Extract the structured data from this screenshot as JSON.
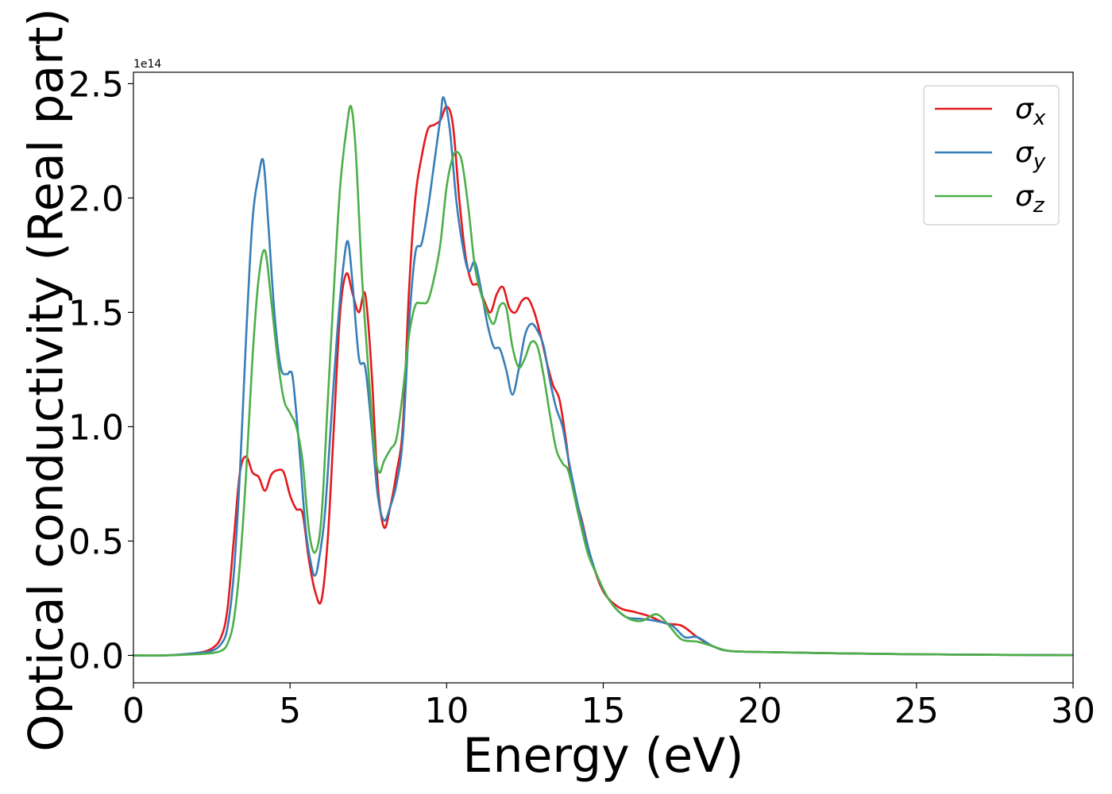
{
  "chart_data": {
    "type": "line",
    "title": "",
    "xlabel": "Energy (eV)",
    "ylabel": "Optical conductivity (Real part)",
    "y_offset_text": "1e14",
    "xlim": [
      0,
      30
    ],
    "ylim": [
      -0.12,
      2.55
    ],
    "xticks": [
      0,
      5,
      10,
      15,
      20,
      25,
      30
    ],
    "xtick_labels": [
      "0",
      "5",
      "10",
      "15",
      "20",
      "25",
      "30"
    ],
    "yticks": [
      0.0,
      0.5,
      1.0,
      1.5,
      2.0,
      2.5
    ],
    "ytick_labels": [
      "0.0",
      "0.5",
      "1.0",
      "1.5",
      "2.0",
      "2.5"
    ],
    "grid": false,
    "legend_position": "top-right",
    "series": [
      {
        "name": "σx",
        "legend_base": "σ",
        "legend_sub": "x",
        "color": "#e41a1c",
        "x": [
          0,
          1,
          2,
          2.5,
          2.8,
          3.0,
          3.2,
          3.4,
          3.6,
          3.8,
          4.0,
          4.2,
          4.4,
          4.6,
          4.8,
          5.0,
          5.2,
          5.4,
          5.6,
          5.8,
          6.0,
          6.2,
          6.4,
          6.6,
          6.8,
          7.0,
          7.2,
          7.4,
          7.6,
          7.8,
          8.0,
          8.2,
          8.4,
          8.6,
          8.8,
          9.0,
          9.2,
          9.4,
          9.6,
          9.8,
          10.0,
          10.2,
          10.4,
          10.6,
          10.8,
          11.0,
          11.2,
          11.4,
          11.6,
          11.8,
          12.0,
          12.2,
          12.4,
          12.6,
          12.8,
          13.0,
          13.2,
          13.4,
          13.6,
          13.8,
          14.0,
          14.3,
          14.6,
          15.0,
          15.5,
          16.0,
          16.5,
          17.0,
          17.5,
          18.0,
          18.5,
          19.0,
          20,
          22,
          25,
          28,
          30
        ],
        "y": [
          0.0,
          0.0,
          0.01,
          0.03,
          0.08,
          0.2,
          0.5,
          0.8,
          0.87,
          0.8,
          0.78,
          0.72,
          0.79,
          0.81,
          0.8,
          0.7,
          0.64,
          0.62,
          0.42,
          0.28,
          0.24,
          0.5,
          1.0,
          1.5,
          1.67,
          1.58,
          1.5,
          1.58,
          1.25,
          0.75,
          0.56,
          0.65,
          0.8,
          1.0,
          1.6,
          2.0,
          2.18,
          2.3,
          2.32,
          2.34,
          2.4,
          2.32,
          2.0,
          1.75,
          1.63,
          1.62,
          1.55,
          1.5,
          1.58,
          1.61,
          1.52,
          1.5,
          1.55,
          1.56,
          1.5,
          1.4,
          1.28,
          1.18,
          1.12,
          0.95,
          0.75,
          0.6,
          0.43,
          0.28,
          0.21,
          0.19,
          0.17,
          0.14,
          0.13,
          0.08,
          0.04,
          0.02,
          0.015,
          0.01,
          0.005,
          0.002,
          0.001
        ]
      },
      {
        "name": "σy",
        "legend_base": "σ",
        "legend_sub": "y",
        "color": "#377eb8",
        "x": [
          0,
          1,
          2,
          2.5,
          2.8,
          3.0,
          3.2,
          3.4,
          3.6,
          3.8,
          4.0,
          4.15,
          4.3,
          4.5,
          4.7,
          4.9,
          5.0,
          5.1,
          5.3,
          5.5,
          5.7,
          5.8,
          5.9,
          6.1,
          6.3,
          6.5,
          6.7,
          6.85,
          7.0,
          7.2,
          7.4,
          7.6,
          7.8,
          8.0,
          8.2,
          8.4,
          8.6,
          8.8,
          9.0,
          9.2,
          9.4,
          9.6,
          9.8,
          9.9,
          10.1,
          10.3,
          10.5,
          10.7,
          10.9,
          11.1,
          11.3,
          11.5,
          11.7,
          11.9,
          12.1,
          12.3,
          12.5,
          12.7,
          12.9,
          13.1,
          13.3,
          13.5,
          13.7,
          13.9,
          14.2,
          14.5,
          14.8,
          15.2,
          15.7,
          16.2,
          16.7,
          17.2,
          17.6,
          18.0,
          18.5,
          19.0,
          20,
          22,
          25,
          28,
          30
        ],
        "y": [
          0.0,
          0.0,
          0.01,
          0.02,
          0.05,
          0.12,
          0.35,
          0.8,
          1.4,
          1.9,
          2.1,
          2.16,
          1.9,
          1.5,
          1.26,
          1.23,
          1.24,
          1.2,
          0.9,
          0.55,
          0.38,
          0.35,
          0.4,
          0.6,
          1.0,
          1.4,
          1.7,
          1.81,
          1.62,
          1.3,
          1.26,
          1.0,
          0.7,
          0.59,
          0.65,
          0.75,
          0.95,
          1.45,
          1.76,
          1.8,
          1.95,
          2.15,
          2.35,
          2.44,
          2.3,
          2.0,
          1.8,
          1.68,
          1.72,
          1.6,
          1.45,
          1.35,
          1.34,
          1.25,
          1.14,
          1.25,
          1.4,
          1.45,
          1.42,
          1.35,
          1.2,
          1.08,
          1.0,
          0.85,
          0.65,
          0.48,
          0.35,
          0.24,
          0.17,
          0.16,
          0.15,
          0.13,
          0.08,
          0.08,
          0.04,
          0.02,
          0.015,
          0.01,
          0.005,
          0.002,
          0.001
        ]
      },
      {
        "name": "σz",
        "legend_base": "σ",
        "legend_sub": "z",
        "color": "#4daf4a",
        "x": [
          0,
          1,
          2,
          2.5,
          2.8,
          3.0,
          3.2,
          3.4,
          3.6,
          3.8,
          4.0,
          4.2,
          4.4,
          4.6,
          4.8,
          5.0,
          5.2,
          5.4,
          5.6,
          5.8,
          6.0,
          6.2,
          6.4,
          6.6,
          6.8,
          6.95,
          7.1,
          7.3,
          7.5,
          7.7,
          7.85,
          8.0,
          8.2,
          8.4,
          8.6,
          8.8,
          9.0,
          9.2,
          9.4,
          9.6,
          9.8,
          10.0,
          10.2,
          10.35,
          10.5,
          10.7,
          10.9,
          11.1,
          11.3,
          11.5,
          11.7,
          11.9,
          12.1,
          12.3,
          12.5,
          12.7,
          12.9,
          13.1,
          13.3,
          13.5,
          13.7,
          13.9,
          14.2,
          14.5,
          14.8,
          15.2,
          15.7,
          16.2,
          16.7,
          17.1,
          17.5,
          18.0,
          18.5,
          19.0,
          20,
          22,
          25,
          28,
          30
        ],
        "y": [
          0.0,
          0.0,
          0.005,
          0.01,
          0.02,
          0.05,
          0.15,
          0.4,
          0.8,
          1.3,
          1.65,
          1.77,
          1.55,
          1.3,
          1.12,
          1.06,
          1.0,
          0.85,
          0.55,
          0.45,
          0.6,
          1.1,
          1.6,
          2.05,
          2.3,
          2.4,
          2.2,
          1.65,
          1.25,
          0.9,
          0.8,
          0.85,
          0.9,
          0.95,
          1.15,
          1.4,
          1.53,
          1.54,
          1.55,
          1.65,
          1.8,
          2.05,
          2.18,
          2.2,
          2.15,
          1.95,
          1.7,
          1.58,
          1.5,
          1.45,
          1.53,
          1.52,
          1.35,
          1.26,
          1.3,
          1.37,
          1.35,
          1.22,
          1.05,
          0.9,
          0.84,
          0.8,
          0.62,
          0.45,
          0.35,
          0.24,
          0.17,
          0.15,
          0.18,
          0.13,
          0.07,
          0.06,
          0.04,
          0.02,
          0.015,
          0.01,
          0.005,
          0.002,
          0.001
        ]
      }
    ]
  }
}
